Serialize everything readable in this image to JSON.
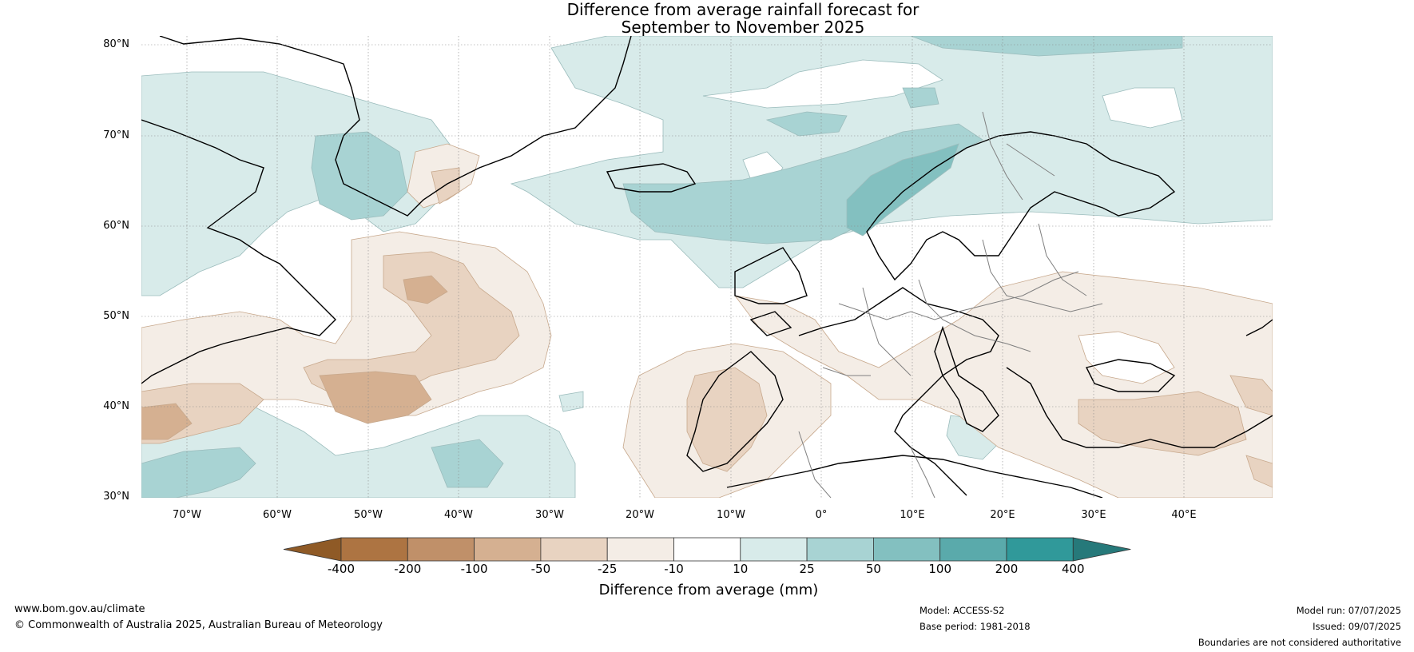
{
  "title_line1": "Difference from average rainfall forecast for",
  "title_line2": "September to November 2025",
  "lat_labels": [
    "80°N",
    "70°N",
    "60°N",
    "50°N",
    "40°N",
    "30°N"
  ],
  "lon_labels": [
    "70°W",
    "60°W",
    "50°W",
    "40°W",
    "30°W",
    "20°W",
    "10°W",
    "0°",
    "10°E",
    "20°E",
    "30°E",
    "40°E"
  ],
  "colorbar": {
    "label": "Difference from average (mm)",
    "ticks": [
      "-400",
      "-200",
      "-100",
      "-50",
      "-25",
      "-10",
      "10",
      "25",
      "50",
      "100",
      "200",
      "400"
    ],
    "colors": [
      "#8f5a26",
      "#ad7442",
      "#c09069",
      "#d5b091",
      "#e8d3c1",
      "#f4ede6",
      "#ffffff",
      "#d8ebea",
      "#a8d3d3",
      "#83c0c0",
      "#5aaaab",
      "#30999a",
      "#26797a"
    ]
  },
  "footer": {
    "url": "www.bom.gov.au/climate",
    "copyright": "© Commonwealth of Australia 2025, Australian Bureau of Meteorology",
    "model": "Model: ACCESS-S2",
    "base_period": "Base period: 1981-2018",
    "model_run": "Model run: 07/07/2025",
    "issued": "Issued: 09/07/2025",
    "disclaimer": "Boundaries are not considered authoritative"
  }
}
